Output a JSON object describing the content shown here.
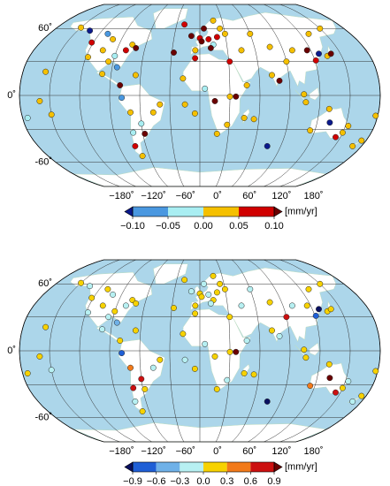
{
  "chart_data": [
    {
      "type": "scatter",
      "projection": "robinson",
      "xlim": [
        -180,
        180
      ],
      "ylim": [
        -90,
        90
      ],
      "xticks": [
        {
          "value": -180,
          "label": "−180˚"
        },
        {
          "value": -120,
          "label": "−120˚"
        },
        {
          "value": -60,
          "label": "−60˚"
        },
        {
          "value": 0,
          "label": "0˚"
        },
        {
          "value": 60,
          "label": "60˚"
        },
        {
          "value": 120,
          "label": "120˚"
        },
        {
          "value": 180,
          "label": "180˚"
        }
      ],
      "yticks": [
        {
          "value": 60,
          "label": "60˚"
        },
        {
          "value": 0,
          "label": "0˚"
        },
        {
          "value": -60,
          "label": "-60˚"
        }
      ],
      "x": [
        -122,
        -118,
        -105,
        -95,
        -90,
        -80,
        -75,
        -70,
        -100,
        -150,
        -135,
        -110,
        -85,
        -65,
        -80,
        -99,
        -78,
        -70,
        -60,
        -47,
        -40,
        -58,
        -70,
        -72,
        -68,
        0,
        2,
        10,
        15,
        20,
        5,
        25,
        -5,
        12,
        30,
        -20,
        18,
        -10,
        -17,
        5,
        30,
        36,
        28,
        18,
        45,
        -5,
        31,
        47,
        15,
        60,
        77,
        90,
        100,
        116,
        121,
        135,
        140,
        127,
        104,
        80,
        106,
        73,
        45,
        130,
        150,
        115,
        133,
        145,
        150,
        153,
        175,
        170,
        130,
        178,
        -157,
        -150,
        -175,
        -160,
        -28,
        -15,
        -5,
        55,
        75
      ],
      "y": [
        47,
        34,
        40,
        30,
        35,
        40,
        45,
        42,
        50,
        61,
        58,
        55,
        25,
        18,
        9,
        19,
        -2,
        -15,
        -25,
        -15,
        -8,
        -34,
        -33,
        -45,
        -54,
        51,
        48,
        50,
        45,
        52,
        60,
        60,
        40,
        42,
        55,
        64,
        68,
        53,
        15,
        6,
        -1,
        -1,
        -26,
        -34,
        -20,
        33,
        30,
        9,
        -5,
        55,
        43,
        30,
        40,
        40,
        31,
        35,
        37,
        37,
        1,
        13,
        -6,
        18,
        40,
        55,
        60,
        -31,
        -24,
        -37,
        -33,
        -27,
        -40,
        -45,
        -12,
        -18,
        21,
        -17,
        -20,
        -5,
        38,
        -8,
        -16,
        -21,
        -45
      ],
      "values": [
        0.07,
        0.03,
        0.02,
        0.04,
        -0.03,
        0.08,
        0.03,
        0.12,
        0.02,
        0.04,
        -0.12,
        -0.07,
        -0.06,
        0.03,
        0.12,
        0.02,
        -0.06,
        0.03,
        -0.03,
        0.04,
        0.02,
        0.15,
        -0.02,
        0.08,
        0.03,
        0.08,
        0.12,
        0.06,
        -0.04,
        0.09,
        0.15,
        0.03,
        0.04,
        0.11,
        0.02,
        0.06,
        0.02,
        0.13,
        0.04,
        -0.03,
        0.03,
        0.12,
        0.03,
        0.02,
        0.04,
        0.07,
        0.08,
        0.03,
        0.13,
        0.03,
        0.02,
        0.04,
        0.02,
        0.13,
        0.08,
        0.03,
        0.15,
        -0.13,
        0.05,
        0.12,
        0.03,
        0.02,
        0.03,
        0.03,
        0.04,
        0.03,
        -0.12,
        0.09,
        0.02,
        0.03,
        0.04,
        0.03,
        0.04,
        0.02,
        0.03,
        0.02,
        -0.03,
        0.03,
        0.12,
        0.02,
        0.03,
        0.04,
        -0.12
      ],
      "colorbar": {
        "label": "[mm/yr]",
        "ticks": [
          {
            "value": -0.1,
            "label": "−0.10"
          },
          {
            "value": -0.05,
            "label": "−0.05"
          },
          {
            "value": 0,
            "label": "0.00"
          },
          {
            "value": 0.05,
            "label": "0.05"
          },
          {
            "value": 0.1,
            "label": "0.10"
          }
        ],
        "colors": [
          "#4a98e0",
          "#a9eef2",
          "#f5c000",
          "#d00000"
        ],
        "under_color": "#0b1a8c",
        "over_color": "#6a0000"
      }
    },
    {
      "type": "scatter",
      "projection": "robinson",
      "xlim": [
        -180,
        180
      ],
      "ylim": [
        -90,
        90
      ],
      "xticks": [
        {
          "value": -180,
          "label": "−180˚"
        },
        {
          "value": -120,
          "label": "−120˚"
        },
        {
          "value": -60,
          "label": "−60˚"
        },
        {
          "value": 0,
          "label": "0˚"
        },
        {
          "value": 60,
          "label": "60˚"
        },
        {
          "value": 120,
          "label": "120˚"
        },
        {
          "value": 180,
          "label": "180˚"
        }
      ],
      "yticks": [
        {
          "value": 60,
          "label": "60˚"
        },
        {
          "value": 0,
          "label": "0˚"
        },
        {
          "value": -60,
          "label": "-60˚"
        }
      ],
      "x": [
        -122,
        -118,
        -105,
        -95,
        -90,
        -80,
        -75,
        -70,
        -100,
        -150,
        -135,
        -110,
        -85,
        -65,
        -80,
        -99,
        -78,
        -70,
        -60,
        -47,
        -40,
        -58,
        -70,
        -72,
        -68,
        0,
        2,
        10,
        15,
        20,
        5,
        25,
        -5,
        12,
        30,
        -20,
        18,
        -10,
        -17,
        5,
        30,
        36,
        28,
        18,
        45,
        -5,
        31,
        47,
        15,
        60,
        77,
        90,
        100,
        116,
        121,
        135,
        140,
        127,
        104,
        80,
        106,
        73,
        45,
        130,
        150,
        115,
        133,
        145,
        150,
        153,
        175,
        170,
        130,
        178,
        -157,
        -150,
        -175,
        -160,
        -28,
        -15,
        -5,
        55,
        75
      ],
      "y": [
        47,
        34,
        40,
        30,
        35,
        40,
        45,
        42,
        50,
        61,
        58,
        55,
        25,
        18,
        9,
        19,
        -2,
        -15,
        -25,
        -15,
        -8,
        -34,
        -33,
        -45,
        -54,
        51,
        48,
        50,
        45,
        52,
        60,
        60,
        40,
        42,
        55,
        64,
        68,
        53,
        15,
        6,
        -1,
        -1,
        -26,
        -34,
        -20,
        33,
        30,
        9,
        -5,
        55,
        43,
        30,
        40,
        40,
        31,
        35,
        37,
        37,
        1,
        13,
        -6,
        18,
        40,
        55,
        60,
        -31,
        -24,
        -37,
        -33,
        -27,
        -40,
        -45,
        -12,
        -18,
        21,
        -17,
        -20,
        -5,
        38,
        -8,
        -16,
        -21,
        -45
      ],
      "values": [
        0.2,
        -0.1,
        0.1,
        -0.2,
        0.2,
        -0.1,
        0.1,
        0.2,
        -0.2,
        0.1,
        -0.1,
        0.2,
        -0.4,
        0.1,
        0.2,
        -0.1,
        -0.7,
        0.4,
        0.7,
        -0.1,
        0.2,
        0.1,
        0.8,
        -0.2,
        0.1,
        0.2,
        0.1,
        -0.1,
        0.2,
        0.1,
        -0.1,
        0.2,
        0.1,
        -0.2,
        0.1,
        0.2,
        0.1,
        -0.1,
        0.2,
        -0.1,
        0.1,
        1.1,
        -0.1,
        0.2,
        0.1,
        0.2,
        0.1,
        -0.1,
        0.2,
        -0.2,
        0.1,
        0.7,
        -0.1,
        0.2,
        -0.7,
        0.1,
        0.2,
        -1.0,
        0.1,
        -0.1,
        0.2,
        0.1,
        -0.1,
        0.2,
        0.1,
        0.4,
        1.1,
        0.7,
        0.1,
        -0.1,
        0.1,
        -0.2,
        0.2,
        0.1,
        0.2,
        -0.1,
        0.1,
        0.2,
        0.1,
        -0.1,
        0.2,
        0.1,
        -1.0
      ],
      "colorbar": {
        "label": "[mm/yr]",
        "ticks": [
          {
            "value": -0.9,
            "label": "−0.9"
          },
          {
            "value": -0.6,
            "label": "−0.6"
          },
          {
            "value": -0.3,
            "label": "−0.3"
          },
          {
            "value": 0,
            "label": "0.0"
          },
          {
            "value": 0.3,
            "label": "0.3"
          },
          {
            "value": 0.6,
            "label": "0.6"
          },
          {
            "value": 0.9,
            "label": "0.9"
          }
        ],
        "colors": [
          "#1f5fd6",
          "#6fb1e8",
          "#b7f0f2",
          "#f7d200",
          "#f27a1a",
          "#cc1010"
        ],
        "under_color": "#0a1060",
        "over_color": "#6a0000"
      }
    }
  ]
}
